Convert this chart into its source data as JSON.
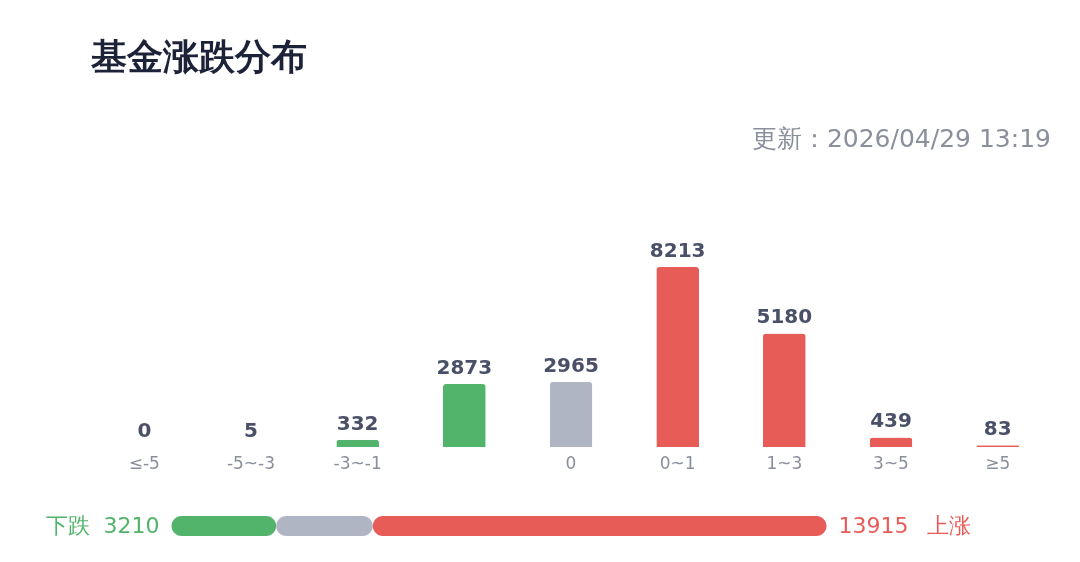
{
  "chart_data": [
    {
      "type": "bar",
      "title": "基金涨跌分布",
      "subtitle": "更新：2026/04/29 13:19",
      "categories": [
        "≤-5",
        "-5~-3",
        "-3~-1",
        null,
        "0",
        "0~1",
        "1~3",
        "3~5",
        "≥5"
      ],
      "values": [
        0,
        5,
        332,
        2873,
        2965,
        8213,
        5180,
        439,
        83
      ],
      "colors": [
        "#52b46a",
        "#52b46a",
        "#52b46a",
        "#52b46a",
        "#b0b5c4",
        "#e85c58",
        "#e85c58",
        "#e85c58",
        "#e85c58"
      ],
      "data_labels": true
    },
    {
      "type": "bar",
      "orientation": "horizontal",
      "stacked": true,
      "categories": [
        null
      ],
      "series": [
        {
          "name": "下跌",
          "color": "#52b46a",
          "values": [
            3210
          ],
          "value_labels": [
            "3210"
          ]
        },
        {
          "color": "#b0b5c4",
          "values": [
            2965
          ],
          "value_labels": [
            null
          ]
        },
        {
          "name": "上涨",
          "color": "#e85c58",
          "values": [
            13915
          ],
          "value_labels": [
            "13915"
          ]
        }
      ]
    }
  ]
}
